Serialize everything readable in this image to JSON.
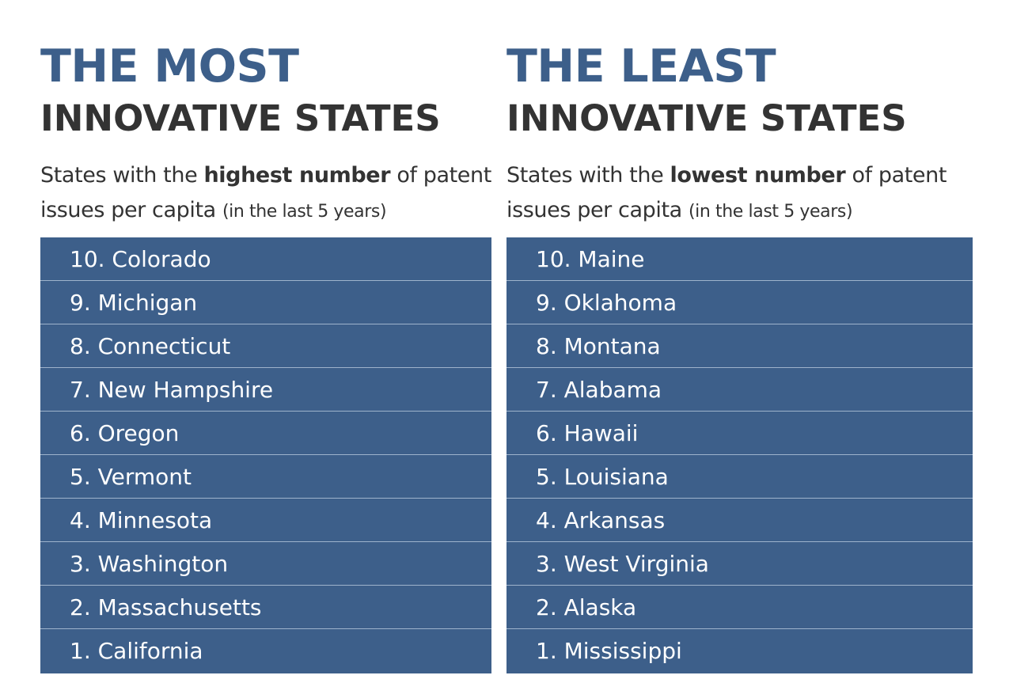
{
  "left": {
    "heading_top": "THE MOST",
    "heading_bottom": "INNOVATIVE STATES",
    "subtitle": {
      "pre": "States with the ",
      "emph": "highest number",
      "mid": " of patent",
      "line2": "issues per capita ",
      "small": "(in the last 5 years)"
    },
    "items": [
      "10. Colorado",
      "9. Michigan",
      "8. Connecticut",
      "7. New Hampshire",
      "6. Oregon",
      "5. Vermont",
      "4. Minnesota",
      "3. Washington",
      "2. Massachusetts",
      "1. California"
    ]
  },
  "right": {
    "heading_top": "THE LEAST",
    "heading_bottom": "INNOVATIVE STATES",
    "subtitle": {
      "pre": "States with the ",
      "emph": "lowest number",
      "mid": " of patent",
      "line2": "issues per capita ",
      "small": "(in the last 5 years)"
    },
    "items": [
      "10. Maine",
      "9. Oklahoma",
      "8. Montana",
      "7. Alabama",
      "6. Hawaii",
      "5. Louisiana",
      "4. Arkansas",
      "3. West Virginia",
      "2. Alaska",
      "1. Mississippi"
    ]
  },
  "colors": {
    "accent": "#3d5f8a",
    "text": "#333333",
    "row_divider": "#9eb3cc"
  }
}
